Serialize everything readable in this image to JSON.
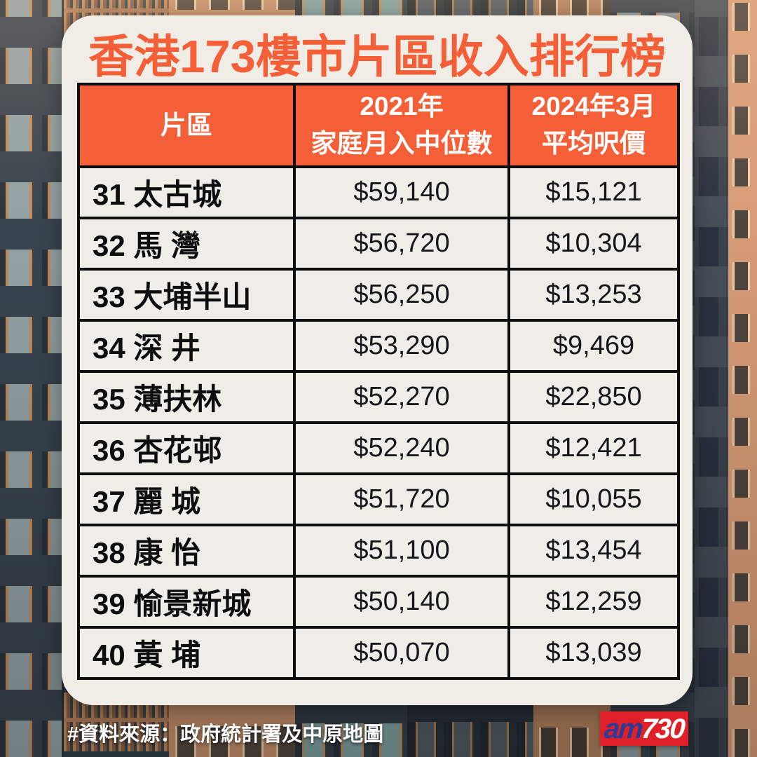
{
  "title": "香港173樓市片區收入排行榜",
  "header": {
    "district": "片區",
    "income": [
      "2021年",
      "家庭月入中位數"
    ],
    "price": [
      "2024年3月",
      "平均呎價"
    ]
  },
  "chart_data": {
    "type": "table",
    "title": "香港173樓市片區收入排行榜",
    "columns": [
      "片區",
      "2021年家庭月入中位數",
      "2024年3月平均呎價"
    ],
    "rows": [
      {
        "rank": "31",
        "district": "太古城",
        "income_2021": "$59,140",
        "price_2024_03": "$15,121"
      },
      {
        "rank": "32",
        "district": "馬 灣",
        "income_2021": "$56,720",
        "price_2024_03": "$10,304"
      },
      {
        "rank": "33",
        "district": "大埔半山",
        "income_2021": "$56,250",
        "price_2024_03": "$13,253"
      },
      {
        "rank": "34",
        "district": "深 井",
        "income_2021": "$53,290",
        "price_2024_03": "$9,469"
      },
      {
        "rank": "35",
        "district": "薄扶林",
        "income_2021": "$52,270",
        "price_2024_03": "$22,850"
      },
      {
        "rank": "36",
        "district": "杏花邨",
        "income_2021": "$52,240",
        "price_2024_03": "$12,421"
      },
      {
        "rank": "37",
        "district": "麗 城",
        "income_2021": "$51,720",
        "price_2024_03": "$10,055"
      },
      {
        "rank": "38",
        "district": "康 怡",
        "income_2021": "$51,100",
        "price_2024_03": "$13,454"
      },
      {
        "rank": "39",
        "district": "愉景新城",
        "income_2021": "$50,140",
        "price_2024_03": "$12,259"
      },
      {
        "rank": "40",
        "district": "黃 埔",
        "income_2021": "$50,070",
        "price_2024_03": "$13,039"
      }
    ]
  },
  "footer_source": "#資料來源：政府統計署及中原地圖",
  "logo": {
    "am": "am",
    "num": "730"
  },
  "colors": {
    "accent_orange": "#F55F38",
    "card_bg": "#F0EDE7",
    "table_border": "#0E0E0E",
    "logo_red": "#E02028",
    "logo_blue": "#2B3B97",
    "text_dark": "#17171A",
    "header_text": "#FFFFFF"
  }
}
